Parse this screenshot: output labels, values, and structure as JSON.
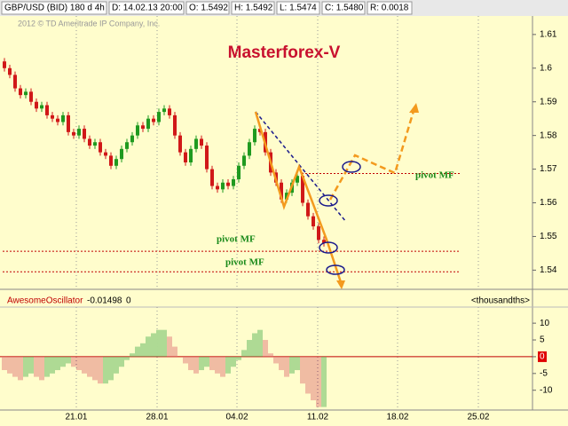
{
  "header": {
    "symbol": "GBP/USD (BID) 180 d 4h",
    "date": "D: 14.02.13 20:00",
    "open": "O: 1.5492",
    "high": "H: 1.5492",
    "low": "L: 1.5474",
    "close": "C: 1.5480",
    "range": "R: 0.0018"
  },
  "copyright": "2012 © TD Ameritrade IP Company, Inc.",
  "chart_data": [
    {
      "type": "candlestick",
      "title": "Masterforex-V",
      "up_color": "#1f9a1f",
      "down_color": "#d01818",
      "open": [
        1.602,
        1.6,
        1.598,
        1.594,
        1.592,
        1.593,
        1.59,
        1.588,
        1.589,
        1.586,
        1.585,
        1.584,
        1.586,
        1.581,
        1.58,
        1.582,
        1.579,
        1.577,
        1.578,
        1.575,
        1.574,
        1.571,
        1.573,
        1.576,
        1.578,
        1.58,
        1.583,
        1.582,
        1.585,
        1.584,
        1.587,
        1.588,
        1.586,
        1.58,
        1.575,
        1.572,
        1.576,
        1.579,
        1.577,
        1.57,
        1.565,
        1.564,
        1.566,
        1.565,
        1.567,
        1.571,
        1.574,
        1.578,
        1.582,
        1.581,
        1.575,
        1.569,
        1.566,
        1.561,
        1.563,
        1.566,
        1.568,
        1.56,
        1.556,
        1.553,
        1.549
      ],
      "high": [
        1.603,
        1.601,
        1.599,
        1.595,
        1.594,
        1.594,
        1.591,
        1.59,
        1.59,
        1.587,
        1.586,
        1.587,
        1.587,
        1.582,
        1.583,
        1.583,
        1.58,
        1.579,
        1.579,
        1.576,
        1.575,
        1.574,
        1.577,
        1.579,
        1.581,
        1.584,
        1.584,
        1.586,
        1.586,
        1.588,
        1.589,
        1.589,
        1.587,
        1.581,
        1.576,
        1.577,
        1.58,
        1.58,
        1.578,
        1.571,
        1.566,
        1.567,
        1.567,
        1.568,
        1.572,
        1.575,
        1.579,
        1.583,
        1.583,
        1.582,
        1.576,
        1.57,
        1.567,
        1.564,
        1.567,
        1.569,
        1.569,
        1.561,
        1.557,
        1.554,
        1.55
      ],
      "low": [
        1.599,
        1.597,
        1.593,
        1.591,
        1.591,
        1.589,
        1.587,
        1.587,
        1.585,
        1.584,
        1.583,
        1.583,
        1.58,
        1.579,
        1.579,
        1.578,
        1.576,
        1.576,
        1.574,
        1.573,
        1.57,
        1.57,
        1.572,
        1.575,
        1.577,
        1.579,
        1.581,
        1.581,
        1.583,
        1.583,
        1.586,
        1.585,
        1.579,
        1.574,
        1.571,
        1.571,
        1.575,
        1.576,
        1.569,
        1.564,
        1.563,
        1.563,
        1.564,
        1.564,
        1.566,
        1.57,
        1.573,
        1.577,
        1.58,
        1.574,
        1.568,
        1.565,
        1.56,
        1.56,
        1.562,
        1.565,
        1.559,
        1.555,
        1.552,
        1.548,
        1.547
      ],
      "close": [
        1.6,
        1.598,
        1.594,
        1.592,
        1.593,
        1.59,
        1.588,
        1.589,
        1.586,
        1.585,
        1.584,
        1.586,
        1.581,
        1.58,
        1.582,
        1.579,
        1.577,
        1.578,
        1.575,
        1.574,
        1.571,
        1.573,
        1.576,
        1.578,
        1.58,
        1.583,
        1.582,
        1.585,
        1.584,
        1.587,
        1.588,
        1.586,
        1.58,
        1.575,
        1.572,
        1.576,
        1.579,
        1.577,
        1.57,
        1.565,
        1.564,
        1.566,
        1.565,
        1.567,
        1.571,
        1.574,
        1.578,
        1.582,
        1.581,
        1.575,
        1.569,
        1.566,
        1.561,
        1.563,
        1.566,
        1.568,
        1.56,
        1.556,
        1.553,
        1.549,
        1.548
      ],
      "xlim": [
        0,
        99.17
      ],
      "xticks": [
        {
          "value": 13.5,
          "label": "21.01"
        },
        {
          "value": 28.67,
          "label": "28.01"
        },
        {
          "value": 43.67,
          "label": "04.02"
        },
        {
          "value": 58.83,
          "label": "11.02"
        },
        {
          "value": 73.83,
          "label": "18.02"
        },
        {
          "value": 89,
          "label": "25.02"
        }
      ],
      "ylim": [
        1.5343,
        1.6155
      ],
      "yticks": [
        1.54,
        1.55,
        1.56,
        1.57,
        1.58,
        1.59,
        1.6,
        1.61
      ],
      "pivot_lines": [
        1.5687,
        1.5456,
        1.5395
      ],
      "pivot_color": "#c00000",
      "annotations": [
        "pivot MF",
        "pivot MF",
        "pivot MF"
      ]
    },
    {
      "type": "bar",
      "title": "AwesomeOscillator",
      "readout": [
        "-0.01498",
        "0"
      ],
      "units": "<thousandths>",
      "up_color": "#5cb85c",
      "down_color": "#e07a7a",
      "values": [
        -4,
        -5,
        -6,
        -7,
        -6,
        -5,
        -6,
        -7,
        -6,
        -5,
        -4,
        -3,
        -2,
        -3,
        -4,
        -5,
        -6,
        -7,
        -8,
        -8,
        -7,
        -5,
        -3,
        -1,
        1,
        3,
        4,
        6,
        7,
        8,
        8,
        6,
        3,
        0,
        -2,
        -4,
        -5,
        -4,
        -3,
        -4,
        -5,
        -6,
        -5,
        -3,
        -1,
        2,
        5,
        7,
        8,
        5,
        1,
        -2,
        -4,
        -6,
        -5,
        -4,
        -8,
        -11,
        -13,
        -15,
        -15
      ],
      "ylim": [
        -15.9,
        14.8
      ],
      "yticks": [
        10,
        5,
        0,
        -5,
        -10
      ]
    }
  ]
}
